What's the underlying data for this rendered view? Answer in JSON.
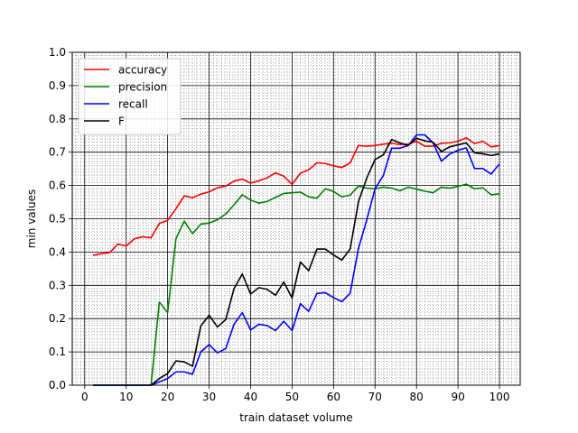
{
  "chart_data": {
    "type": "line",
    "title": "",
    "xlabel": "train dataset volume",
    "ylabel": "min values",
    "xlim": [
      -3,
      105
    ],
    "ylim": [
      0,
      1
    ],
    "grid": true,
    "minor_grid": true,
    "legend_position": "top-left",
    "x_ticks": [
      0,
      10,
      20,
      30,
      40,
      50,
      60,
      70,
      80,
      90,
      100
    ],
    "y_ticks": [
      0.0,
      0.1,
      0.2,
      0.3,
      0.4,
      0.5,
      0.6,
      0.7,
      0.8,
      0.9,
      1.0
    ],
    "x_tick_labels": [
      "0",
      "10",
      "20",
      "30",
      "40",
      "50",
      "60",
      "70",
      "80",
      "90",
      "100"
    ],
    "y_tick_labels": [
      "0.0",
      "0.1",
      "0.2",
      "0.3",
      "0.4",
      "0.5",
      "0.6",
      "0.7",
      "0.8",
      "0.9",
      "1.0"
    ],
    "x": [
      2,
      4,
      6,
      8,
      10,
      12,
      14,
      16,
      18,
      20,
      22,
      24,
      26,
      28,
      30,
      32,
      34,
      36,
      38,
      40,
      42,
      44,
      46,
      48,
      50,
      52,
      54,
      56,
      58,
      60,
      62,
      64,
      66,
      68,
      70,
      72,
      74,
      76,
      78,
      80,
      82,
      84,
      86,
      88,
      90,
      92,
      94,
      96,
      98,
      100
    ],
    "series": [
      {
        "name": "accuracy",
        "color": "#ff0000",
        "values": [
          0.39,
          0.395,
          0.398,
          0.424,
          0.418,
          0.44,
          0.446,
          0.443,
          0.486,
          0.495,
          0.53,
          0.569,
          0.563,
          0.574,
          0.581,
          0.593,
          0.598,
          0.613,
          0.619,
          0.607,
          0.614,
          0.623,
          0.638,
          0.628,
          0.603,
          0.637,
          0.647,
          0.668,
          0.666,
          0.659,
          0.654,
          0.668,
          0.72,
          0.718,
          0.72,
          0.724,
          0.727,
          0.723,
          0.724,
          0.733,
          0.718,
          0.718,
          0.727,
          0.728,
          0.733,
          0.743,
          0.726,
          0.733,
          0.716,
          0.72
        ]
      },
      {
        "name": "precision",
        "color": "#008000",
        "values": [
          0,
          0,
          0,
          0,
          0,
          0,
          0,
          0,
          0.25,
          0.218,
          0.44,
          0.493,
          0.455,
          0.484,
          0.487,
          0.497,
          0.514,
          0.542,
          0.572,
          0.556,
          0.547,
          0.552,
          0.564,
          0.576,
          0.578,
          0.58,
          0.566,
          0.562,
          0.59,
          0.582,
          0.566,
          0.571,
          0.598,
          0.592,
          0.59,
          0.595,
          0.592,
          0.584,
          0.595,
          0.589,
          0.583,
          0.578,
          0.595,
          0.592,
          0.597,
          0.604,
          0.59,
          0.593,
          0.572,
          0.575
        ]
      },
      {
        "name": "recall",
        "color": "#0000ff",
        "values": [
          0,
          0,
          0,
          0,
          0,
          0,
          0,
          0,
          0.01,
          0.02,
          0.04,
          0.04,
          0.033,
          0.1,
          0.122,
          0.097,
          0.11,
          0.183,
          0.218,
          0.166,
          0.183,
          0.179,
          0.164,
          0.192,
          0.164,
          0.245,
          0.222,
          0.276,
          0.278,
          0.263,
          0.251,
          0.276,
          0.411,
          0.496,
          0.59,
          0.63,
          0.712,
          0.712,
          0.72,
          0.752,
          0.752,
          0.728,
          0.673,
          0.694,
          0.706,
          0.713,
          0.651,
          0.651,
          0.634,
          0.665
        ]
      },
      {
        "name": "F",
        "color": "#000000",
        "values": [
          0,
          0,
          0,
          0,
          0,
          0,
          0,
          0,
          0.02,
          0.035,
          0.073,
          0.07,
          0.057,
          0.178,
          0.21,
          0.175,
          0.197,
          0.29,
          0.334,
          0.274,
          0.293,
          0.288,
          0.27,
          0.31,
          0.262,
          0.37,
          0.344,
          0.409,
          0.409,
          0.391,
          0.376,
          0.409,
          0.551,
          0.622,
          0.678,
          0.692,
          0.738,
          0.728,
          0.72,
          0.742,
          0.734,
          0.73,
          0.702,
          0.716,
          0.722,
          0.728,
          0.698,
          0.695,
          0.69,
          0.695
        ]
      }
    ]
  }
}
